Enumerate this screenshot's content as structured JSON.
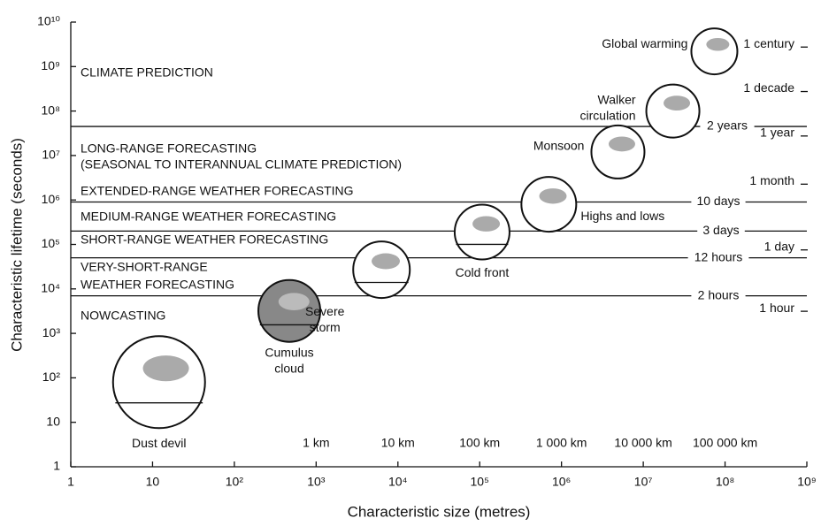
{
  "chart_data": {
    "type": "scatter",
    "xlabel": "Characteristic size (metres)",
    "ylabel": "Characteristic lifetime (seconds)",
    "log_x": true,
    "log_y": true,
    "xlim": [
      1,
      1000000000
    ],
    "ylim": [
      1,
      10000000000
    ],
    "xticks": [
      1,
      10,
      {
        "value": 100,
        "label": "10²"
      },
      {
        "value": 1000,
        "label": "10³"
      },
      {
        "value": 10000,
        "label": "10⁴"
      },
      {
        "value": 100000,
        "label": "10⁵"
      },
      {
        "value": 1000000,
        "label": "10⁶"
      },
      {
        "value": 10000000,
        "label": "10⁷"
      },
      {
        "value": 100000000,
        "label": "10⁸"
      },
      {
        "value": 1000000000,
        "label": "10⁹"
      }
    ],
    "yticks": [
      1,
      10,
      {
        "value": 100,
        "label": "10²"
      },
      {
        "value": 1000,
        "label": "10³"
      },
      {
        "value": 10000,
        "label": "10⁴"
      },
      {
        "value": 100000,
        "label": "10⁵"
      },
      {
        "value": 1000000,
        "label": "10⁶"
      },
      {
        "value": 10000000,
        "label": "10⁷"
      },
      {
        "value": 100000000,
        "label": "10⁸"
      },
      {
        "value": 1000000000,
        "label": "10⁹"
      },
      {
        "value": 10000000000,
        "label": "10¹⁰"
      }
    ],
    "x_unit_labels": [
      {
        "value": 1000,
        "label": "1 km"
      },
      {
        "value": 10000,
        "label": "10 km"
      },
      {
        "value": 100000,
        "label": "100 km"
      },
      {
        "value": 1000000,
        "label": "1 000 km"
      },
      {
        "value": 10000000,
        "label": "10 000 km"
      },
      {
        "value": 100000000,
        "label": "100 000 km"
      }
    ],
    "time_scale": [
      {
        "value": 3150000000,
        "label": "1 century"
      },
      {
        "value": 315000000,
        "label": "1 decade"
      },
      {
        "value": 31500000,
        "label": "1 year"
      },
      {
        "value": 2600000,
        "label": "1 month"
      },
      {
        "value": 86400,
        "label": "1 day"
      },
      {
        "value": 3600,
        "label": "1 hour"
      }
    ],
    "boundaries": [
      {
        "value": 45000000,
        "label": "2 years"
      },
      {
        "value": 900000,
        "label": "10 days"
      },
      {
        "value": 200000,
        "label": "3 days"
      },
      {
        "value": 50000,
        "label": "12 hours"
      },
      {
        "value": 7000,
        "label": "2 hours"
      }
    ],
    "regions": [
      [
        "CLIMATE PREDICTION"
      ],
      [
        "LONG-RANGE FORECASTING",
        "(SEASONAL TO INTERANNUAL CLIMATE PREDICTION)"
      ],
      [
        "EXTENDED-RANGE WEATHER FORECASTING"
      ],
      [
        "MEDIUM-RANGE WEATHER FORECASTING"
      ],
      [
        "SHORT-RANGE WEATHER FORECASTING"
      ],
      [
        "VERY-SHORT-RANGE",
        "WEATHER FORECASTING"
      ],
      [
        "NOWCASTING"
      ]
    ],
    "phenomena": [
      {
        "name": [
          "Dust devil"
        ],
        "x": 12,
        "y": 80
      },
      {
        "name": [
          "Cumulus",
          "cloud"
        ],
        "x": 470,
        "y": 3200
      },
      {
        "name": [
          "Severe",
          "storm"
        ],
        "x": 6300,
        "y": 27000
      },
      {
        "name": [
          "Cold front"
        ],
        "x": 107000,
        "y": 190000
      },
      {
        "name": [
          "Highs and lows"
        ],
        "x": 700000,
        "y": 800000
      },
      {
        "name": [
          "Monsoon"
        ],
        "x": 4900000,
        "y": 12000000
      },
      {
        "name": [
          "Walker",
          "circulation"
        ],
        "x": 23000000,
        "y": 100000000
      },
      {
        "name": [
          "Global warming"
        ],
        "x": 74000000,
        "y": 2200000000
      }
    ]
  }
}
